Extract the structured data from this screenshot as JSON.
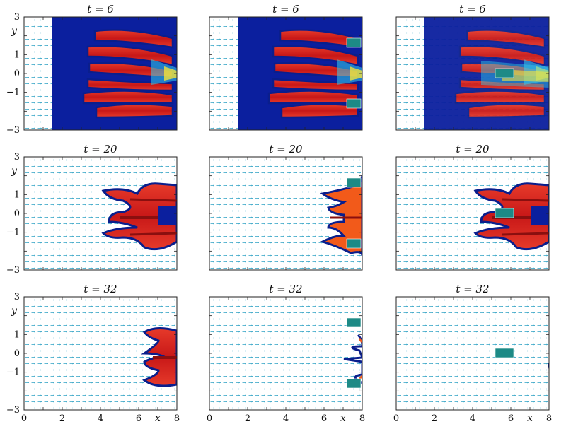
{
  "figure": {
    "x_axis_label": "x",
    "y_axis_label": "y",
    "x_ticks": [
      "0",
      "2",
      "4",
      "6",
      "8"
    ],
    "y_ticks": [
      "3",
      "1",
      "0",
      "−1",
      "−3"
    ],
    "panels": [
      {
        "title": "t = 6",
        "obstacle": "none"
      },
      {
        "title": "t = 6",
        "obstacle": "two-blocks"
      },
      {
        "title": "t = 6",
        "obstacle": "center-block"
      },
      {
        "title": "t = 20",
        "obstacle": "none"
      },
      {
        "title": "t = 20",
        "obstacle": "two-blocks"
      },
      {
        "title": "t = 20",
        "obstacle": "center-block"
      },
      {
        "title": "t = 32",
        "obstacle": "none"
      },
      {
        "title": "t = 32",
        "obstacle": "two-blocks"
      },
      {
        "title": "t = 32",
        "obstacle": "center-block"
      }
    ],
    "colors": {
      "finger_fill": "#d42020",
      "finger_edge": "#0a1e8c",
      "core_dark": "#8a0f0f",
      "channel_blue": "#0b1f9e",
      "highlight_cyan": "#34d0f0",
      "highlight_yellow": "#f3e23a",
      "obstacle": "#1d8a86",
      "quiver": "#3aa7c8"
    }
  }
}
